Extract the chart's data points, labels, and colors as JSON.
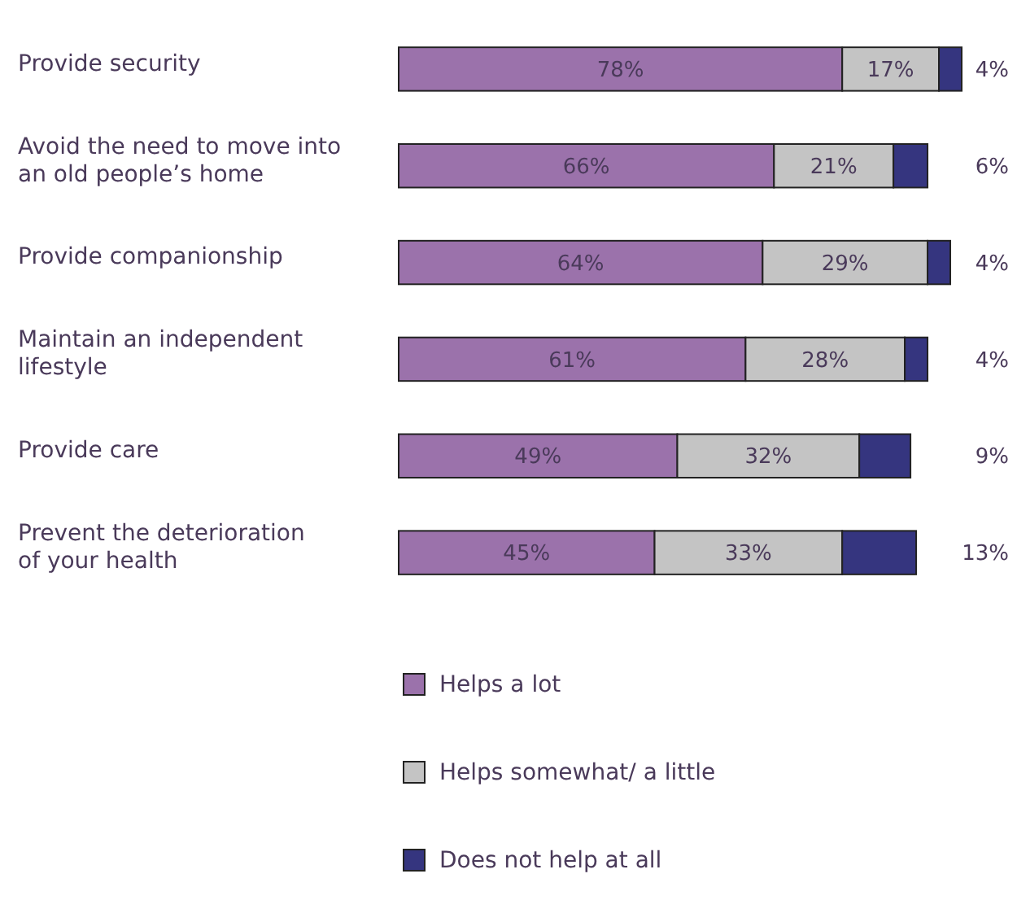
{
  "chart_data": {
    "type": "bar",
    "orientation": "horizontal",
    "stacked": true,
    "legend": "bottom",
    "categories": [
      "Provide security",
      "Avoid the need to move into an old people’s home",
      "Provide companionship",
      "Maintain an independent lifestyle",
      "Provide care",
      "Prevent the deterioration of your health"
    ],
    "series": [
      {
        "name": "Helps a lot",
        "color": "#9b72ab",
        "values": [
          78,
          66,
          64,
          61,
          49,
          45
        ],
        "value_labels": [
          "78%",
          "66%",
          "64%",
          "61%",
          "49%",
          "45%"
        ]
      },
      {
        "name": "Helps somewhat/ a little",
        "color": "#c4c4c4",
        "values": [
          17,
          21,
          29,
          28,
          32,
          33
        ],
        "value_labels": [
          "17%",
          "21%",
          "29%",
          "28%",
          "32%",
          "33%"
        ]
      },
      {
        "name": "Does not help at all",
        "color": "#35357f",
        "values": [
          4,
          6,
          4,
          4,
          9,
          13
        ],
        "value_labels": [
          "4%",
          "6%",
          "4%",
          "4%",
          "9%",
          "13%"
        ]
      }
    ]
  }
}
